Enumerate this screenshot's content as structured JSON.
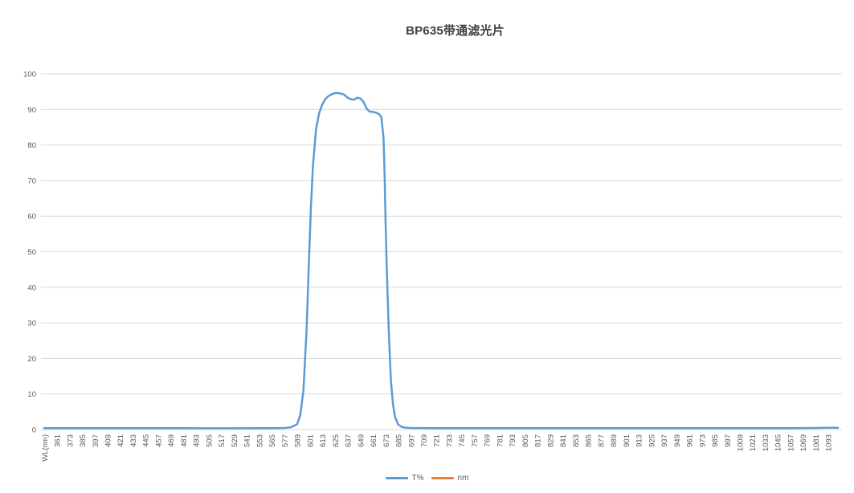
{
  "chart_data": {
    "type": "line",
    "title": "BP635带通滤光片",
    "xlabel": "WL(nm)",
    "ylabel": "",
    "x_axis": {
      "header_label": "WL(nm)",
      "tick_labels": [
        "361",
        "373",
        "385",
        "397",
        "409",
        "421",
        "433",
        "445",
        "457",
        "469",
        "481",
        "493",
        "505",
        "517",
        "529",
        "541",
        "553",
        "565",
        "577",
        "589",
        "601",
        "613",
        "625",
        "637",
        "649",
        "661",
        "673",
        "685",
        "697",
        "709",
        "721",
        "733",
        "745",
        "757",
        "769",
        "781",
        "793",
        "805",
        "817",
        "829",
        "841",
        "853",
        "865",
        "877",
        "889",
        "901",
        "913",
        "925",
        "937",
        "949",
        "961",
        "973",
        "985",
        "997",
        "1009",
        "1021",
        "1033",
        "1045",
        "1057",
        "1069",
        "1081",
        "1093"
      ],
      "tick_step_nm": 12,
      "label_rotation_deg": -90
    },
    "y_axis": {
      "min": 0,
      "max": 100,
      "tick_step": 10,
      "tick_labels": [
        "0",
        "10",
        "20",
        "30",
        "40",
        "50",
        "60",
        "70",
        "80",
        "90",
        "100"
      ]
    },
    "grid": {
      "horizontal": true,
      "vertical": false,
      "color": "#d9d9d9"
    },
    "legend": {
      "position": "bottom-center",
      "entries": [
        {
          "label": "T%",
          "color": "#5b9bd5"
        },
        {
          "label": "nm",
          "color": "#ed7d31"
        }
      ]
    },
    "series": [
      {
        "name": "T%",
        "color": "#5b9bd5",
        "points": [
          [
            361,
            0.4
          ],
          [
            385,
            0.4
          ],
          [
            409,
            0.4
          ],
          [
            433,
            0.4
          ],
          [
            457,
            0.4
          ],
          [
            481,
            0.4
          ],
          [
            505,
            0.35
          ],
          [
            529,
            0.35
          ],
          [
            553,
            0.4
          ],
          [
            565,
            0.4
          ],
          [
            577,
            0.45
          ],
          [
            583,
            0.6
          ],
          [
            589,
            1.5
          ],
          [
            592,
            4
          ],
          [
            595,
            11
          ],
          [
            598,
            28
          ],
          [
            600,
            45
          ],
          [
            602,
            62
          ],
          [
            604,
            74
          ],
          [
            607,
            84.5
          ],
          [
            610,
            89
          ],
          [
            613,
            91.5
          ],
          [
            616,
            93
          ],
          [
            619,
            93.8
          ],
          [
            622,
            94.3
          ],
          [
            625,
            94.6
          ],
          [
            628,
            94.6
          ],
          [
            631,
            94.4
          ],
          [
            634,
            94.1
          ],
          [
            637,
            93.3
          ],
          [
            640,
            92.9
          ],
          [
            643,
            92.7
          ],
          [
            646,
            93.3
          ],
          [
            649,
            93.1
          ],
          [
            652,
            92.2
          ],
          [
            655,
            90.2
          ],
          [
            658,
            89.4
          ],
          [
            661,
            89.3
          ],
          [
            664,
            89.1
          ],
          [
            667,
            88.6
          ],
          [
            669,
            87.8
          ],
          [
            671,
            82
          ],
          [
            672,
            72
          ],
          [
            673,
            58
          ],
          [
            674,
            46
          ],
          [
            676,
            28
          ],
          [
            678,
            14
          ],
          [
            680,
            7
          ],
          [
            682,
            3.5
          ],
          [
            685,
            1.4
          ],
          [
            688,
            0.8
          ],
          [
            691,
            0.55
          ],
          [
            697,
            0.45
          ],
          [
            721,
            0.4
          ],
          [
            745,
            0.4
          ],
          [
            769,
            0.4
          ],
          [
            793,
            0.4
          ],
          [
            817,
            0.4
          ],
          [
            841,
            0.4
          ],
          [
            865,
            0.4
          ],
          [
            889,
            0.4
          ],
          [
            913,
            0.4
          ],
          [
            937,
            0.4
          ],
          [
            961,
            0.4
          ],
          [
            985,
            0.4
          ],
          [
            1009,
            0.4
          ],
          [
            1033,
            0.4
          ],
          [
            1057,
            0.4
          ],
          [
            1081,
            0.45
          ],
          [
            1093,
            0.5
          ]
        ]
      }
    ],
    "colors": {
      "title_text": "#404040",
      "axis_text": "#595959",
      "gridline": "#d9d9d9",
      "background": "#ffffff"
    }
  }
}
